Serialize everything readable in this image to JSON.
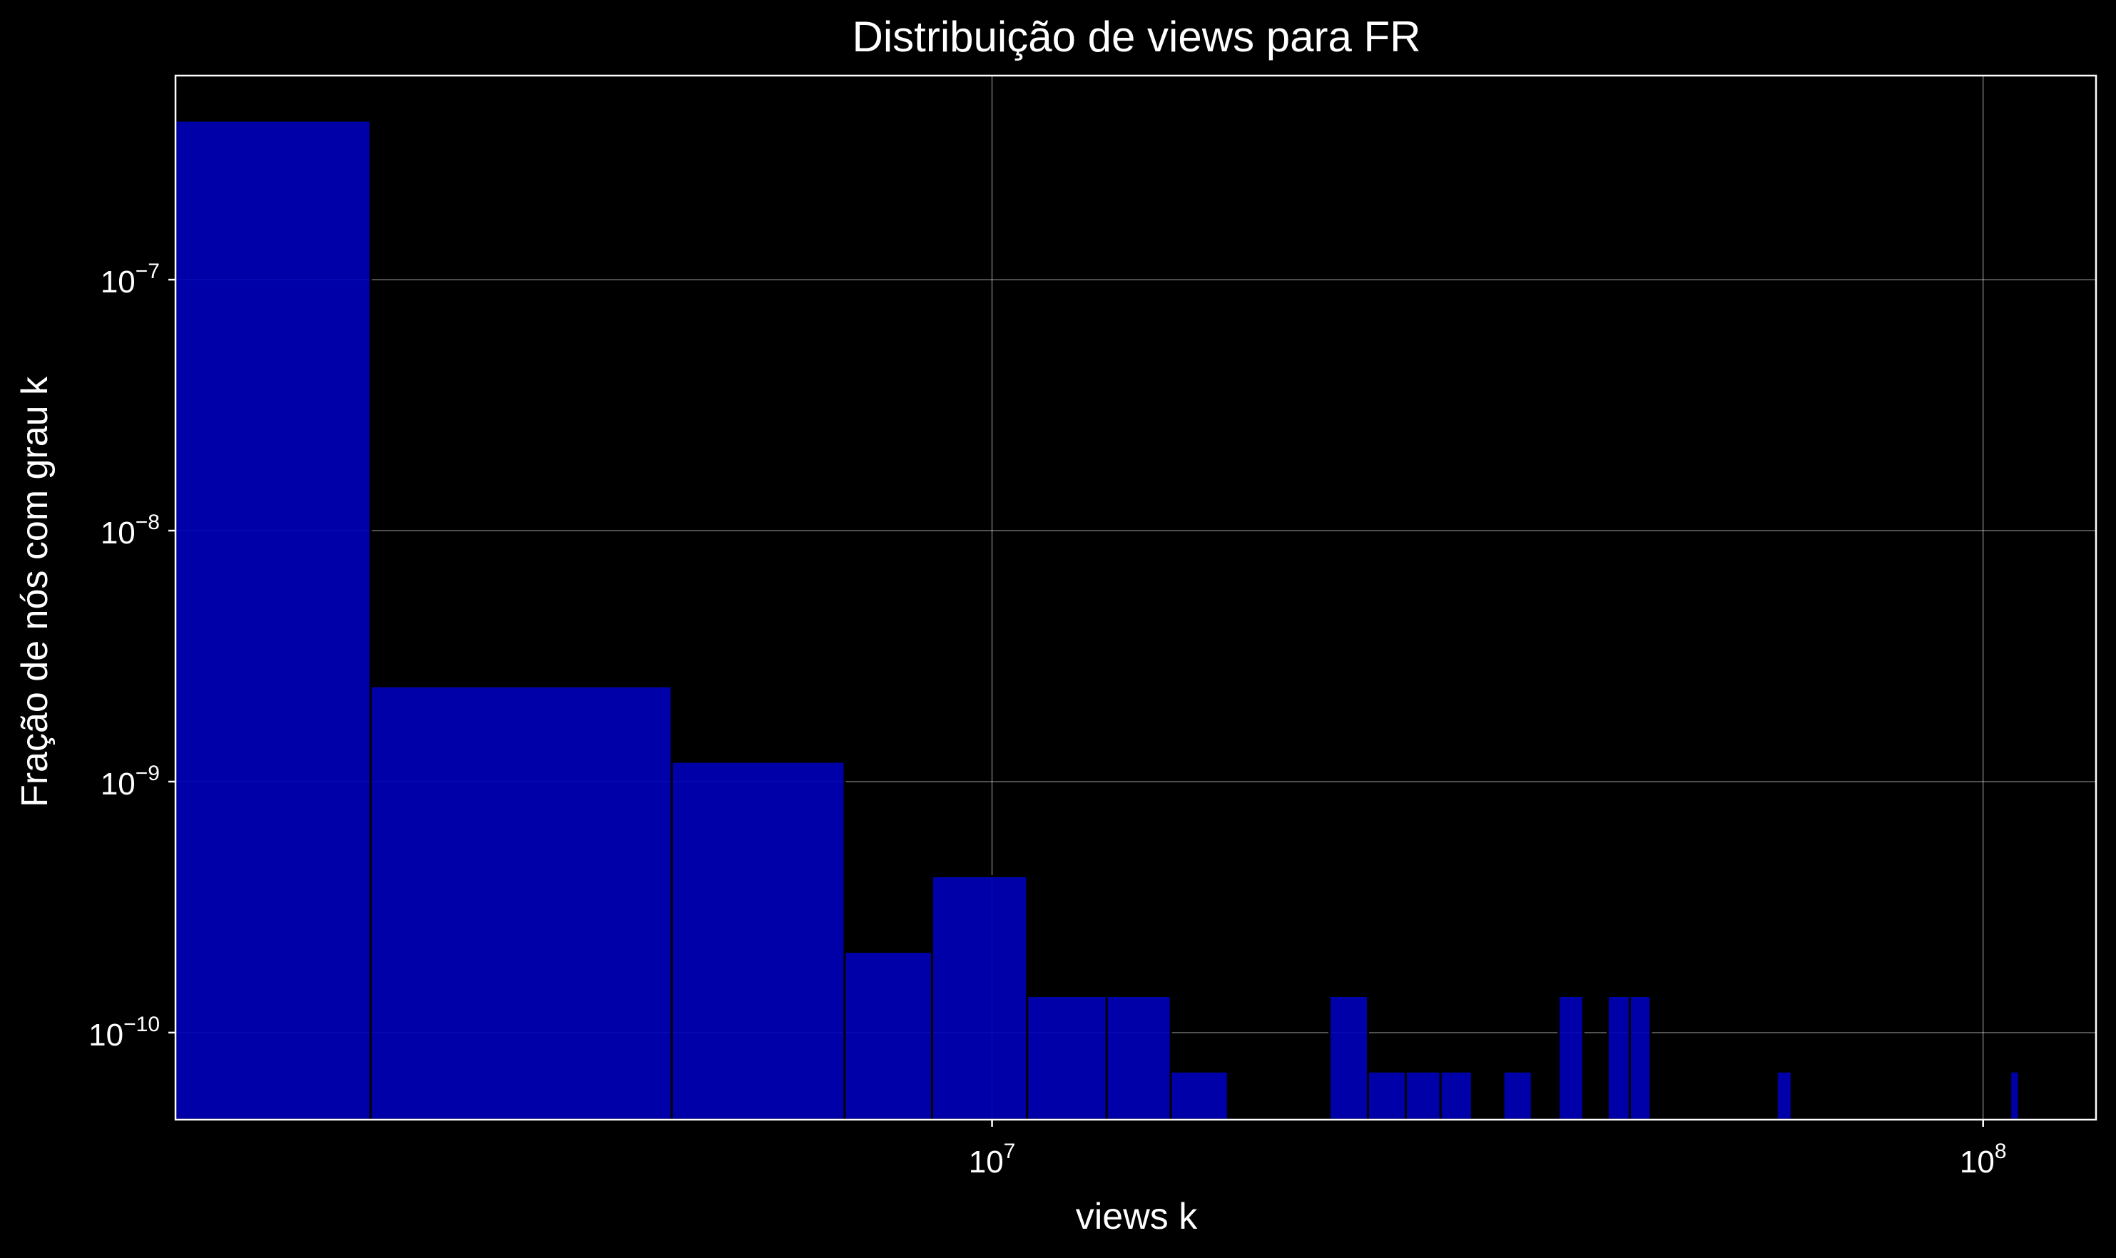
{
  "chart_data": {
    "type": "bar",
    "title": "Distribuição de views para FR",
    "xlabel": "views k",
    "ylabel": "Fração de nós com grau k",
    "x_scale": "log",
    "y_scale": "log",
    "xlim": [
      1500000,
      130000000
    ],
    "ylim": [
      4.5e-11,
      6.5e-07
    ],
    "x_ticks": [
      {
        "value": 10000000,
        "base": "10",
        "exp": "7"
      },
      {
        "value": 100000000,
        "base": "10",
        "exp": "8"
      }
    ],
    "y_ticks": [
      {
        "value": 1e-07,
        "base": "10",
        "exp": "−7"
      },
      {
        "value": 1e-08,
        "base": "10",
        "exp": "−8"
      },
      {
        "value": 1e-09,
        "base": "10",
        "exp": "−9"
      },
      {
        "value": 1e-10,
        "base": "10",
        "exp": "−10"
      }
    ],
    "grid": true,
    "bar_color": "#0000bb",
    "bar_edge_color": "#000000",
    "bins": [
      {
        "x0": 1500000,
        "x1": 2360000,
        "value": 4.3e-07
      },
      {
        "x0": 2360000,
        "x1": 4750000,
        "value": 2.4e-09
      },
      {
        "x0": 4750000,
        "x1": 7100000,
        "value": 1.2e-09
      },
      {
        "x0": 7100000,
        "x1": 8700000,
        "value": 2.1e-10
      },
      {
        "x0": 8700000,
        "x1": 10850000,
        "value": 4.2e-10
      },
      {
        "x0": 10850000,
        "x1": 13050000,
        "value": 1.4e-10
      },
      {
        "x0": 13050000,
        "x1": 15150000,
        "value": 1.4e-10
      },
      {
        "x0": 15150000,
        "x1": 17300000,
        "value": 7e-11
      },
      {
        "x0": 21900000,
        "x1": 23950000,
        "value": 1.4e-10
      },
      {
        "x0": 23950000,
        "x1": 26150000,
        "value": 7e-11
      },
      {
        "x0": 26150000,
        "x1": 28350000,
        "value": 7e-11
      },
      {
        "x0": 28350000,
        "x1": 30500000,
        "value": 7e-11
      },
      {
        "x0": 32800000,
        "x1": 35050000,
        "value": 7e-11
      },
      {
        "x0": 37300000,
        "x1": 39500000,
        "value": 1.4e-10
      },
      {
        "x0": 41800000,
        "x1": 44000000,
        "value": 1.4e-10
      },
      {
        "x0": 44000000,
        "x1": 46200000,
        "value": 1.4e-10
      },
      {
        "x0": 61900000,
        "x1": 64100000,
        "value": 7e-11
      },
      {
        "x0": 106500000,
        "x1": 108700000,
        "value": 7e-11
      }
    ]
  }
}
